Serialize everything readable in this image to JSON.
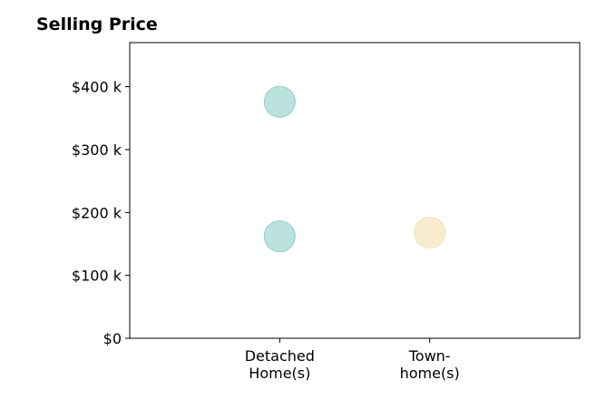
{
  "chart_data": {
    "type": "scatter",
    "title": "Selling Price",
    "categories": [
      "Detached\nHome(s)",
      "Town-\nhome(s)"
    ],
    "y_ticks": [
      "$0",
      "$100 k",
      "$200 k",
      "$300 k",
      "$400 k"
    ],
    "y_tick_values": [
      0,
      100,
      200,
      300,
      400
    ],
    "ylim": [
      0,
      470
    ],
    "xlim": [
      -1,
      2
    ],
    "grid": false,
    "series": [
      {
        "color": "#8fcfc8",
        "points": [
          {
            "category": "Detached\nHome(s)",
            "value": 376
          },
          {
            "category": "Detached\nHome(s)",
            "value": 162
          }
        ]
      },
      {
        "color": "#f5dfae",
        "points": [
          {
            "category": "Town-\nhome(s)",
            "value": 168
          }
        ]
      }
    ]
  }
}
